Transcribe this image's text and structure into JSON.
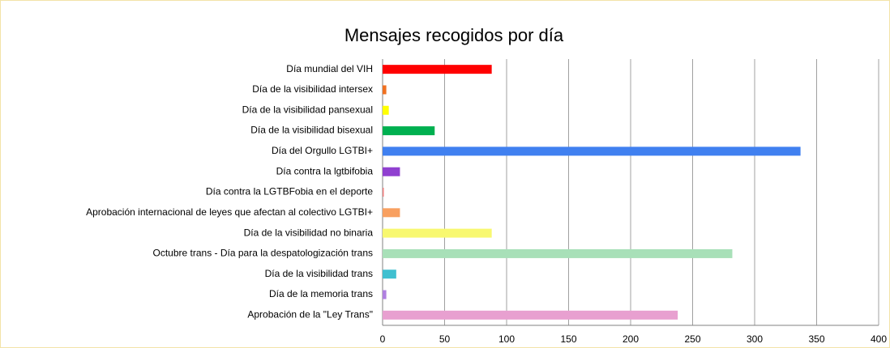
{
  "chart_data": {
    "type": "bar",
    "horizontal": true,
    "title": "Mensajes recogidos por día",
    "categories": [
      "Día mundial del VIH",
      "Día de la visibilidad intersex",
      "Día de la visibilidad pansexual",
      "Día de la visibilidad bisexual",
      "Día del Orgullo LGTBI+",
      "Día contra la lgtbifobia",
      "Día contra la LGTBFobia en el deporte",
      "Aprobación internacional de leyes que afectan al colectivo LGTBI+",
      "Día de la visibilidad no binaria",
      "Octubre trans - Día para la despatologización trans",
      "Día de la visibilidad trans",
      "Día de la memoria trans",
      "Aprobación de la \"Ley Trans\""
    ],
    "values": [
      88,
      3,
      5,
      42,
      337,
      14,
      1,
      14,
      88,
      282,
      11,
      3,
      238
    ],
    "colors": [
      "#ff0000",
      "#f07020",
      "#ffff00",
      "#00b050",
      "#4080f0",
      "#9040d0",
      "#f08080",
      "#f8a060",
      "#f8f870",
      "#a8e0b8",
      "#40c0d0",
      "#b080e0",
      "#e8a0d0"
    ],
    "xlim": [
      0,
      400
    ],
    "xticks": [
      0,
      50,
      100,
      150,
      200,
      250,
      300,
      350,
      400
    ],
    "grid": true
  }
}
